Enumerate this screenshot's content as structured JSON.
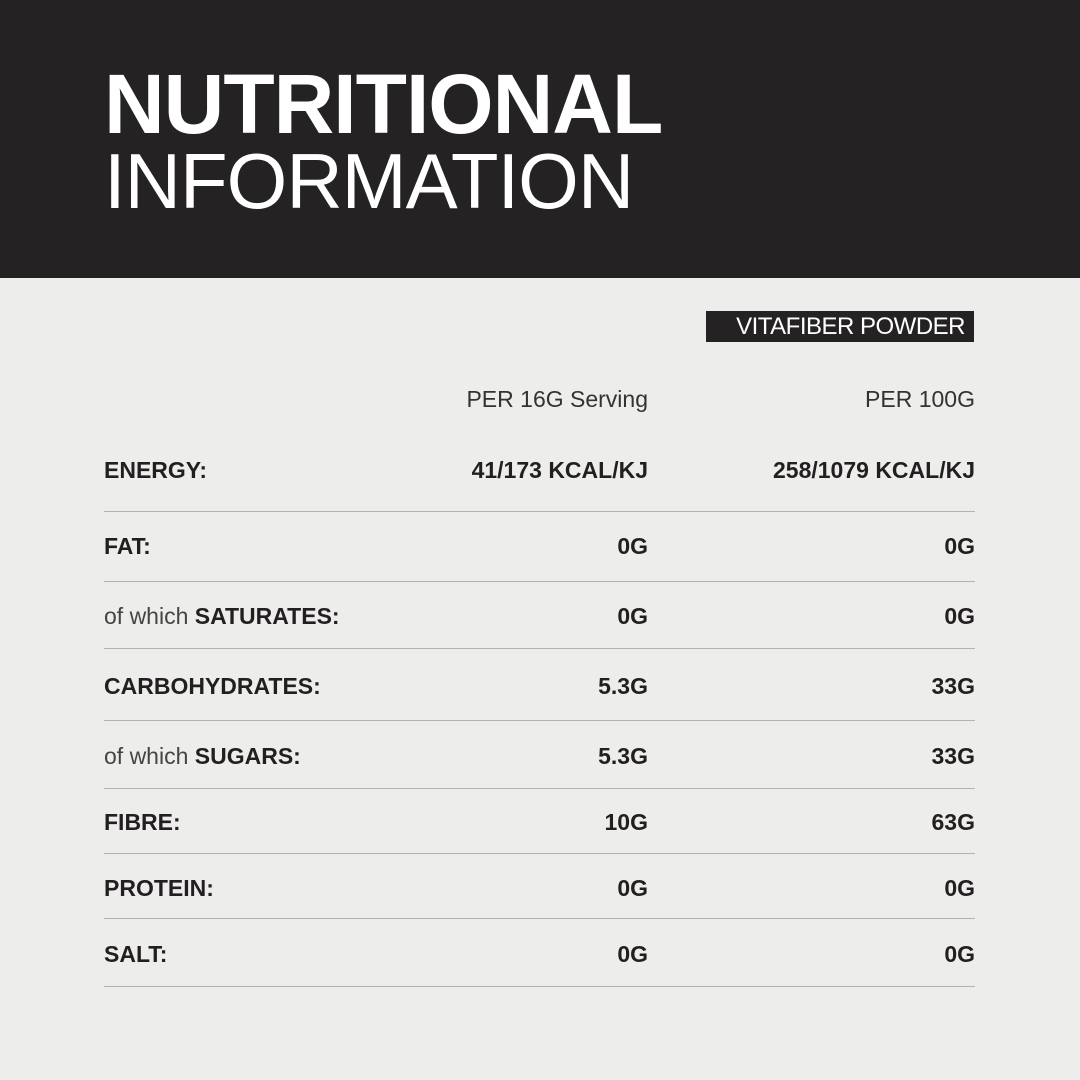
{
  "header": {
    "title_bold": "NUTRITIONAL",
    "title_light": "INFORMATION",
    "background": "#242223"
  },
  "product_badge": "VITAFIBER POWDER",
  "columns": {
    "per_serving": "PER 16G Serving",
    "per_100g": "PER 100G"
  },
  "rows": [
    {
      "prefix": "",
      "label": "ENERGY:",
      "per_serving": "41/173 KCAL/KJ",
      "per_100g": "258/1079 KCAL/KJ"
    },
    {
      "prefix": "",
      "label": "FAT:",
      "per_serving": "0G",
      "per_100g": "0G"
    },
    {
      "prefix": "of which ",
      "label": "SATURATES:",
      "per_serving": "0G",
      "per_100g": "0G"
    },
    {
      "prefix": "",
      "label": "CARBOHYDRATES:",
      "per_serving": "5.3G",
      "per_100g": "33G"
    },
    {
      "prefix": "of which ",
      "label": "SUGARS:",
      "per_serving": "5.3G",
      "per_100g": "33G"
    },
    {
      "prefix": "",
      "label": "FIBRE:",
      "per_serving": "10G",
      "per_100g": "63G"
    },
    {
      "prefix": "",
      "label": "PROTEIN:",
      "per_serving": "0G",
      "per_100g": "0G"
    },
    {
      "prefix": "",
      "label": "SALT:",
      "per_serving": "0G",
      "per_100g": "0G"
    }
  ]
}
